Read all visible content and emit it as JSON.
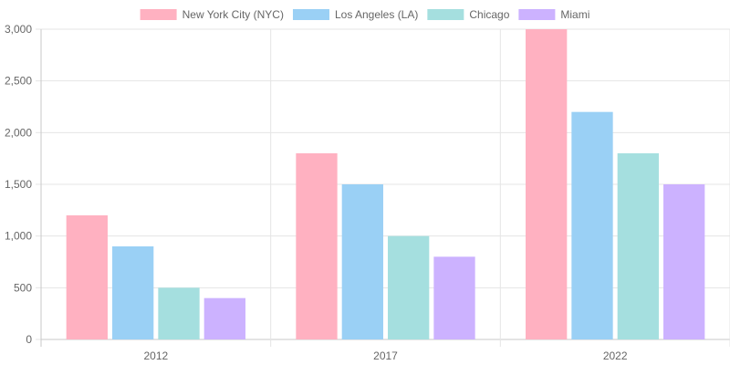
{
  "chart_data": {
    "type": "bar",
    "categories": [
      "2012",
      "2017",
      "2022"
    ],
    "series": [
      {
        "name": "New York City (NYC)",
        "values": [
          1200,
          1800,
          3000
        ],
        "color": "#ffb1c1",
        "border": "#ff6384"
      },
      {
        "name": "Los Angeles (LA)",
        "values": [
          900,
          1500,
          2200
        ],
        "color": "#9ad0f5",
        "border": "#36a2eb"
      },
      {
        "name": "Chicago",
        "values": [
          500,
          1000,
          1800
        ],
        "color": "#a5dfdf",
        "border": "#4bc0c0"
      },
      {
        "name": "Miami",
        "values": [
          400,
          800,
          1500
        ],
        "color": "#ccb2ff",
        "border": "#9966ff"
      }
    ],
    "ylim": [
      0,
      3000
    ],
    "yticks": [
      0,
      500,
      1000,
      1500,
      2000,
      2500,
      3000
    ],
    "ytick_labels": [
      "0",
      "500",
      "1,000",
      "1,500",
      "2,000",
      "2,500",
      "3,000"
    ],
    "grid": true,
    "legend_position": "top",
    "title": "",
    "xlabel": "",
    "ylabel": ""
  }
}
